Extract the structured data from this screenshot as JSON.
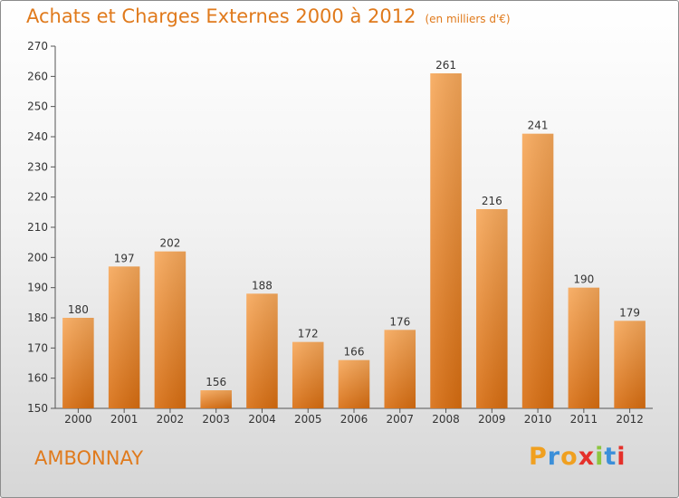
{
  "chart_data": {
    "type": "bar",
    "title": "Achats et Charges Externes 2000 à 2012",
    "subtitle": "(en milliers d'€)",
    "categories": [
      "2000",
      "2001",
      "2002",
      "2003",
      "2004",
      "2005",
      "2006",
      "2007",
      "2008",
      "2009",
      "2010",
      "2011",
      "2012"
    ],
    "values": [
      180,
      197,
      202,
      156,
      188,
      172,
      166,
      176,
      261,
      216,
      241,
      190,
      179
    ],
    "ylim": [
      150,
      270
    ],
    "yticks": [
      150,
      160,
      170,
      180,
      190,
      200,
      210,
      220,
      230,
      240,
      250,
      260,
      270
    ],
    "grid": false,
    "bar_color_top": "#f7a85a",
    "bar_color_bottom": "#d86d10"
  },
  "footer": {
    "commune": "AMBONNAY",
    "brand": "Proxiti",
    "brand_colors": [
      "#f0a020",
      "#3b8fd9",
      "#f0a020",
      "#e5302a",
      "#8dc63f",
      "#3b8fd9",
      "#e5302a"
    ]
  }
}
